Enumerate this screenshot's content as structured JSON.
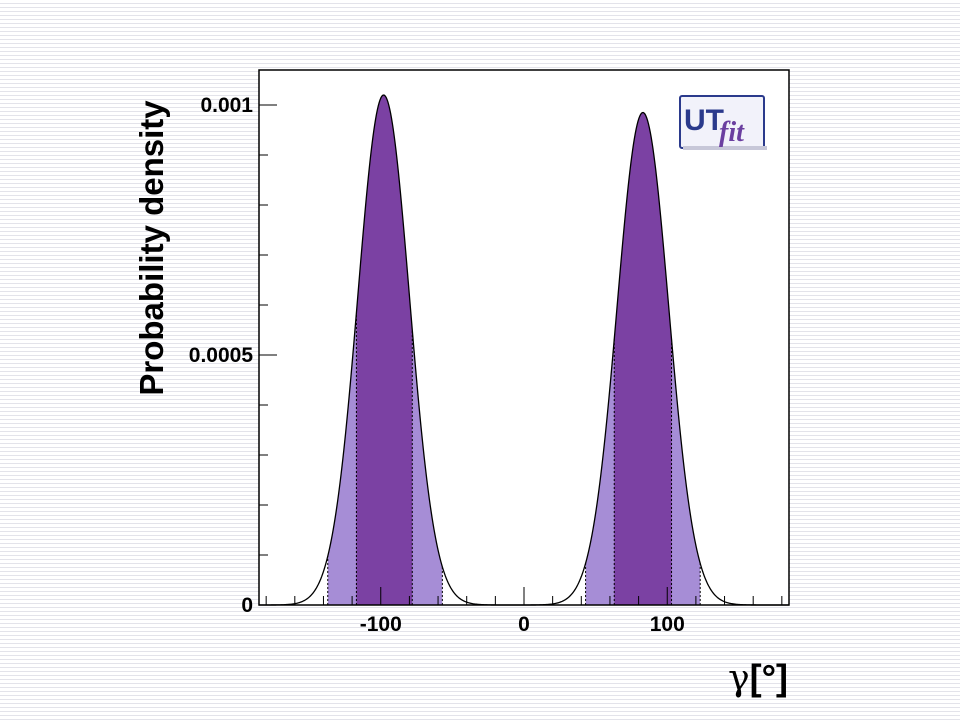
{
  "chart_data": {
    "type": "area",
    "ylabel": "Probability density",
    "xlabel_symbol": "γ",
    "xlabel_unit": "[°]",
    "xlim": [
      -185,
      185
    ],
    "ylim": [
      0,
      0.00107
    ],
    "x_ticks": [
      {
        "value": -100,
        "label": "-100"
      },
      {
        "value": 0,
        "label": "0"
      },
      {
        "value": 100,
        "label": "100"
      }
    ],
    "y_ticks": [
      {
        "value": 0,
        "label": "0"
      },
      {
        "value": 0.0005,
        "label": "0.0005"
      },
      {
        "value": 0.001,
        "label": "0.001"
      }
    ],
    "peaks": [
      {
        "center": -98,
        "height": 0.00102,
        "sigma": 18,
        "inner_interval": [
          -117,
          -78
        ],
        "outer_interval": [
          -137,
          -57
        ]
      },
      {
        "center": 83,
        "height": 0.000985,
        "sigma": 18,
        "inner_interval": [
          63,
          103
        ],
        "outer_interval": [
          43,
          123
        ]
      }
    ],
    "colors": {
      "inner_band": "#7b41a3",
      "outer_band": "#a68dd6",
      "curve": "#000000",
      "frame": "#000000"
    },
    "grid": false
  },
  "logo": {
    "text_main": "UT",
    "text_sub": "fit",
    "border_color": "#2b3a8c",
    "background": "#f2f2fa"
  }
}
